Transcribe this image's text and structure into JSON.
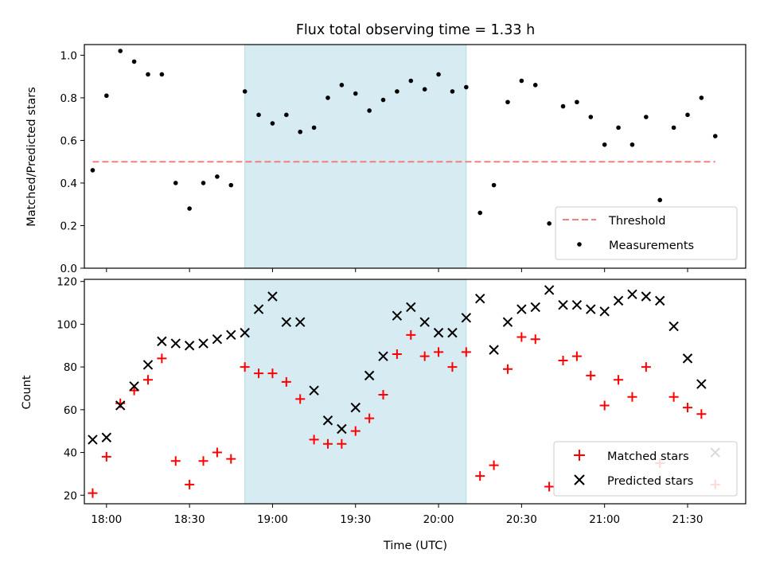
{
  "chart_data": {
    "type": "scatter",
    "title": "Flux total observing time = 1.33 h",
    "xlabel": "Time (UTC)",
    "x_ticks": [
      "18:00",
      "18:30",
      "19:00",
      "19:30",
      "20:00",
      "20:30",
      "21:00",
      "21:30"
    ],
    "x_range": [
      "17:52",
      "21:51"
    ],
    "shaded_interval": {
      "start": "18:50",
      "end": "20:10",
      "color": "#add8e6"
    },
    "panels": [
      {
        "ylabel": "Matched/Predicted stars",
        "ylim": [
          0,
          1.05
        ],
        "y_ticks": [
          "0.0",
          "0.2",
          "0.4",
          "0.6",
          "0.8",
          "1.0"
        ],
        "legend_position": "lower right",
        "threshold": {
          "name": "Threshold",
          "value": 0.5,
          "x_start": "17:55",
          "x_end": "21:40",
          "color": "#f08080"
        },
        "series": [
          {
            "name": "Measurements",
            "marker": "dot",
            "color": "#000000",
            "x": [
              "17:55",
              "18:00",
              "18:05",
              "18:10",
              "18:15",
              "18:20",
              "18:25",
              "18:30",
              "18:35",
              "18:40",
              "18:45",
              "18:50",
              "18:55",
              "19:00",
              "19:05",
              "19:10",
              "19:15",
              "19:20",
              "19:25",
              "19:30",
              "19:35",
              "19:40",
              "19:45",
              "19:50",
              "19:55",
              "20:00",
              "20:05",
              "20:10",
              "20:15",
              "20:20",
              "20:25",
              "20:30",
              "20:35",
              "20:40",
              "20:45",
              "20:50",
              "20:55",
              "21:00",
              "21:05",
              "21:10",
              "21:15",
              "21:20",
              "21:25",
              "21:30",
              "21:35",
              "21:40"
            ],
            "y": [
              0.46,
              0.81,
              1.02,
              0.97,
              0.91,
              0.91,
              0.4,
              0.28,
              0.4,
              0.43,
              0.39,
              0.83,
              0.72,
              0.68,
              0.72,
              0.64,
              0.66,
              0.8,
              0.86,
              0.82,
              0.74,
              0.79,
              0.83,
              0.88,
              0.84,
              0.91,
              0.83,
              0.85,
              0.26,
              0.39,
              0.78,
              0.88,
              0.86,
              0.21,
              0.76,
              0.78,
              0.71,
              0.58,
              0.66,
              0.58,
              0.71,
              0.32,
              0.66,
              0.72,
              0.8,
              0.62
            ]
          }
        ]
      },
      {
        "ylabel": "Count",
        "ylim": [
          16,
          121
        ],
        "y_ticks": [
          "20",
          "40",
          "60",
          "80",
          "100",
          "120"
        ],
        "legend_position": "lower right",
        "series": [
          {
            "name": "Matched stars",
            "marker": "plus",
            "color": "#ff0000",
            "x": [
              "17:55",
              "18:00",
              "18:05",
              "18:10",
              "18:15",
              "18:20",
              "18:25",
              "18:30",
              "18:35",
              "18:40",
              "18:45",
              "18:50",
              "18:55",
              "19:00",
              "19:05",
              "19:10",
              "19:15",
              "19:20",
              "19:25",
              "19:30",
              "19:35",
              "19:40",
              "19:45",
              "19:50",
              "19:55",
              "20:00",
              "20:05",
              "20:10",
              "20:15",
              "20:20",
              "20:25",
              "20:30",
              "20:35",
              "20:40",
              "20:45",
              "20:50",
              "20:55",
              "21:00",
              "21:05",
              "21:10",
              "21:15",
              "21:20",
              "21:25",
              "21:30",
              "21:35",
              "21:40"
            ],
            "y": [
              21,
              38,
              63,
              69,
              74,
              84,
              36,
              25,
              36,
              40,
              37,
              80,
              77,
              77,
              73,
              65,
              46,
              44,
              44,
              50,
              56,
              67,
              86,
              95,
              85,
              87,
              80,
              87,
              29,
              34,
              79,
              94,
              93,
              24,
              83,
              85,
              76,
              62,
              74,
              66,
              80,
              35,
              66,
              61,
              58,
              25
            ]
          },
          {
            "name": "Predicted stars",
            "marker": "x",
            "color": "#000000",
            "x": [
              "17:55",
              "18:00",
              "18:05",
              "18:10",
              "18:15",
              "18:20",
              "18:25",
              "18:30",
              "18:35",
              "18:40",
              "18:45",
              "18:50",
              "18:55",
              "19:00",
              "19:05",
              "19:10",
              "19:15",
              "19:20",
              "19:25",
              "19:30",
              "19:35",
              "19:40",
              "19:45",
              "19:50",
              "19:55",
              "20:00",
              "20:05",
              "20:10",
              "20:15",
              "20:20",
              "20:25",
              "20:30",
              "20:35",
              "20:40",
              "20:45",
              "20:50",
              "20:55",
              "21:00",
              "21:05",
              "21:10",
              "21:15",
              "21:20",
              "21:25",
              "21:30",
              "21:35",
              "21:40"
            ],
            "y": [
              46,
              47,
              62,
              71,
              81,
              92,
              91,
              90,
              91,
              93,
              95,
              96,
              107,
              113,
              101,
              101,
              69,
              55,
              51,
              61,
              76,
              85,
              104,
              108,
              101,
              96,
              96,
              103,
              112,
              88,
              101,
              107,
              108,
              116,
              109,
              109,
              107,
              106,
              111,
              114,
              113,
              111,
              99,
              84,
              72,
              40
            ]
          }
        ]
      }
    ]
  }
}
